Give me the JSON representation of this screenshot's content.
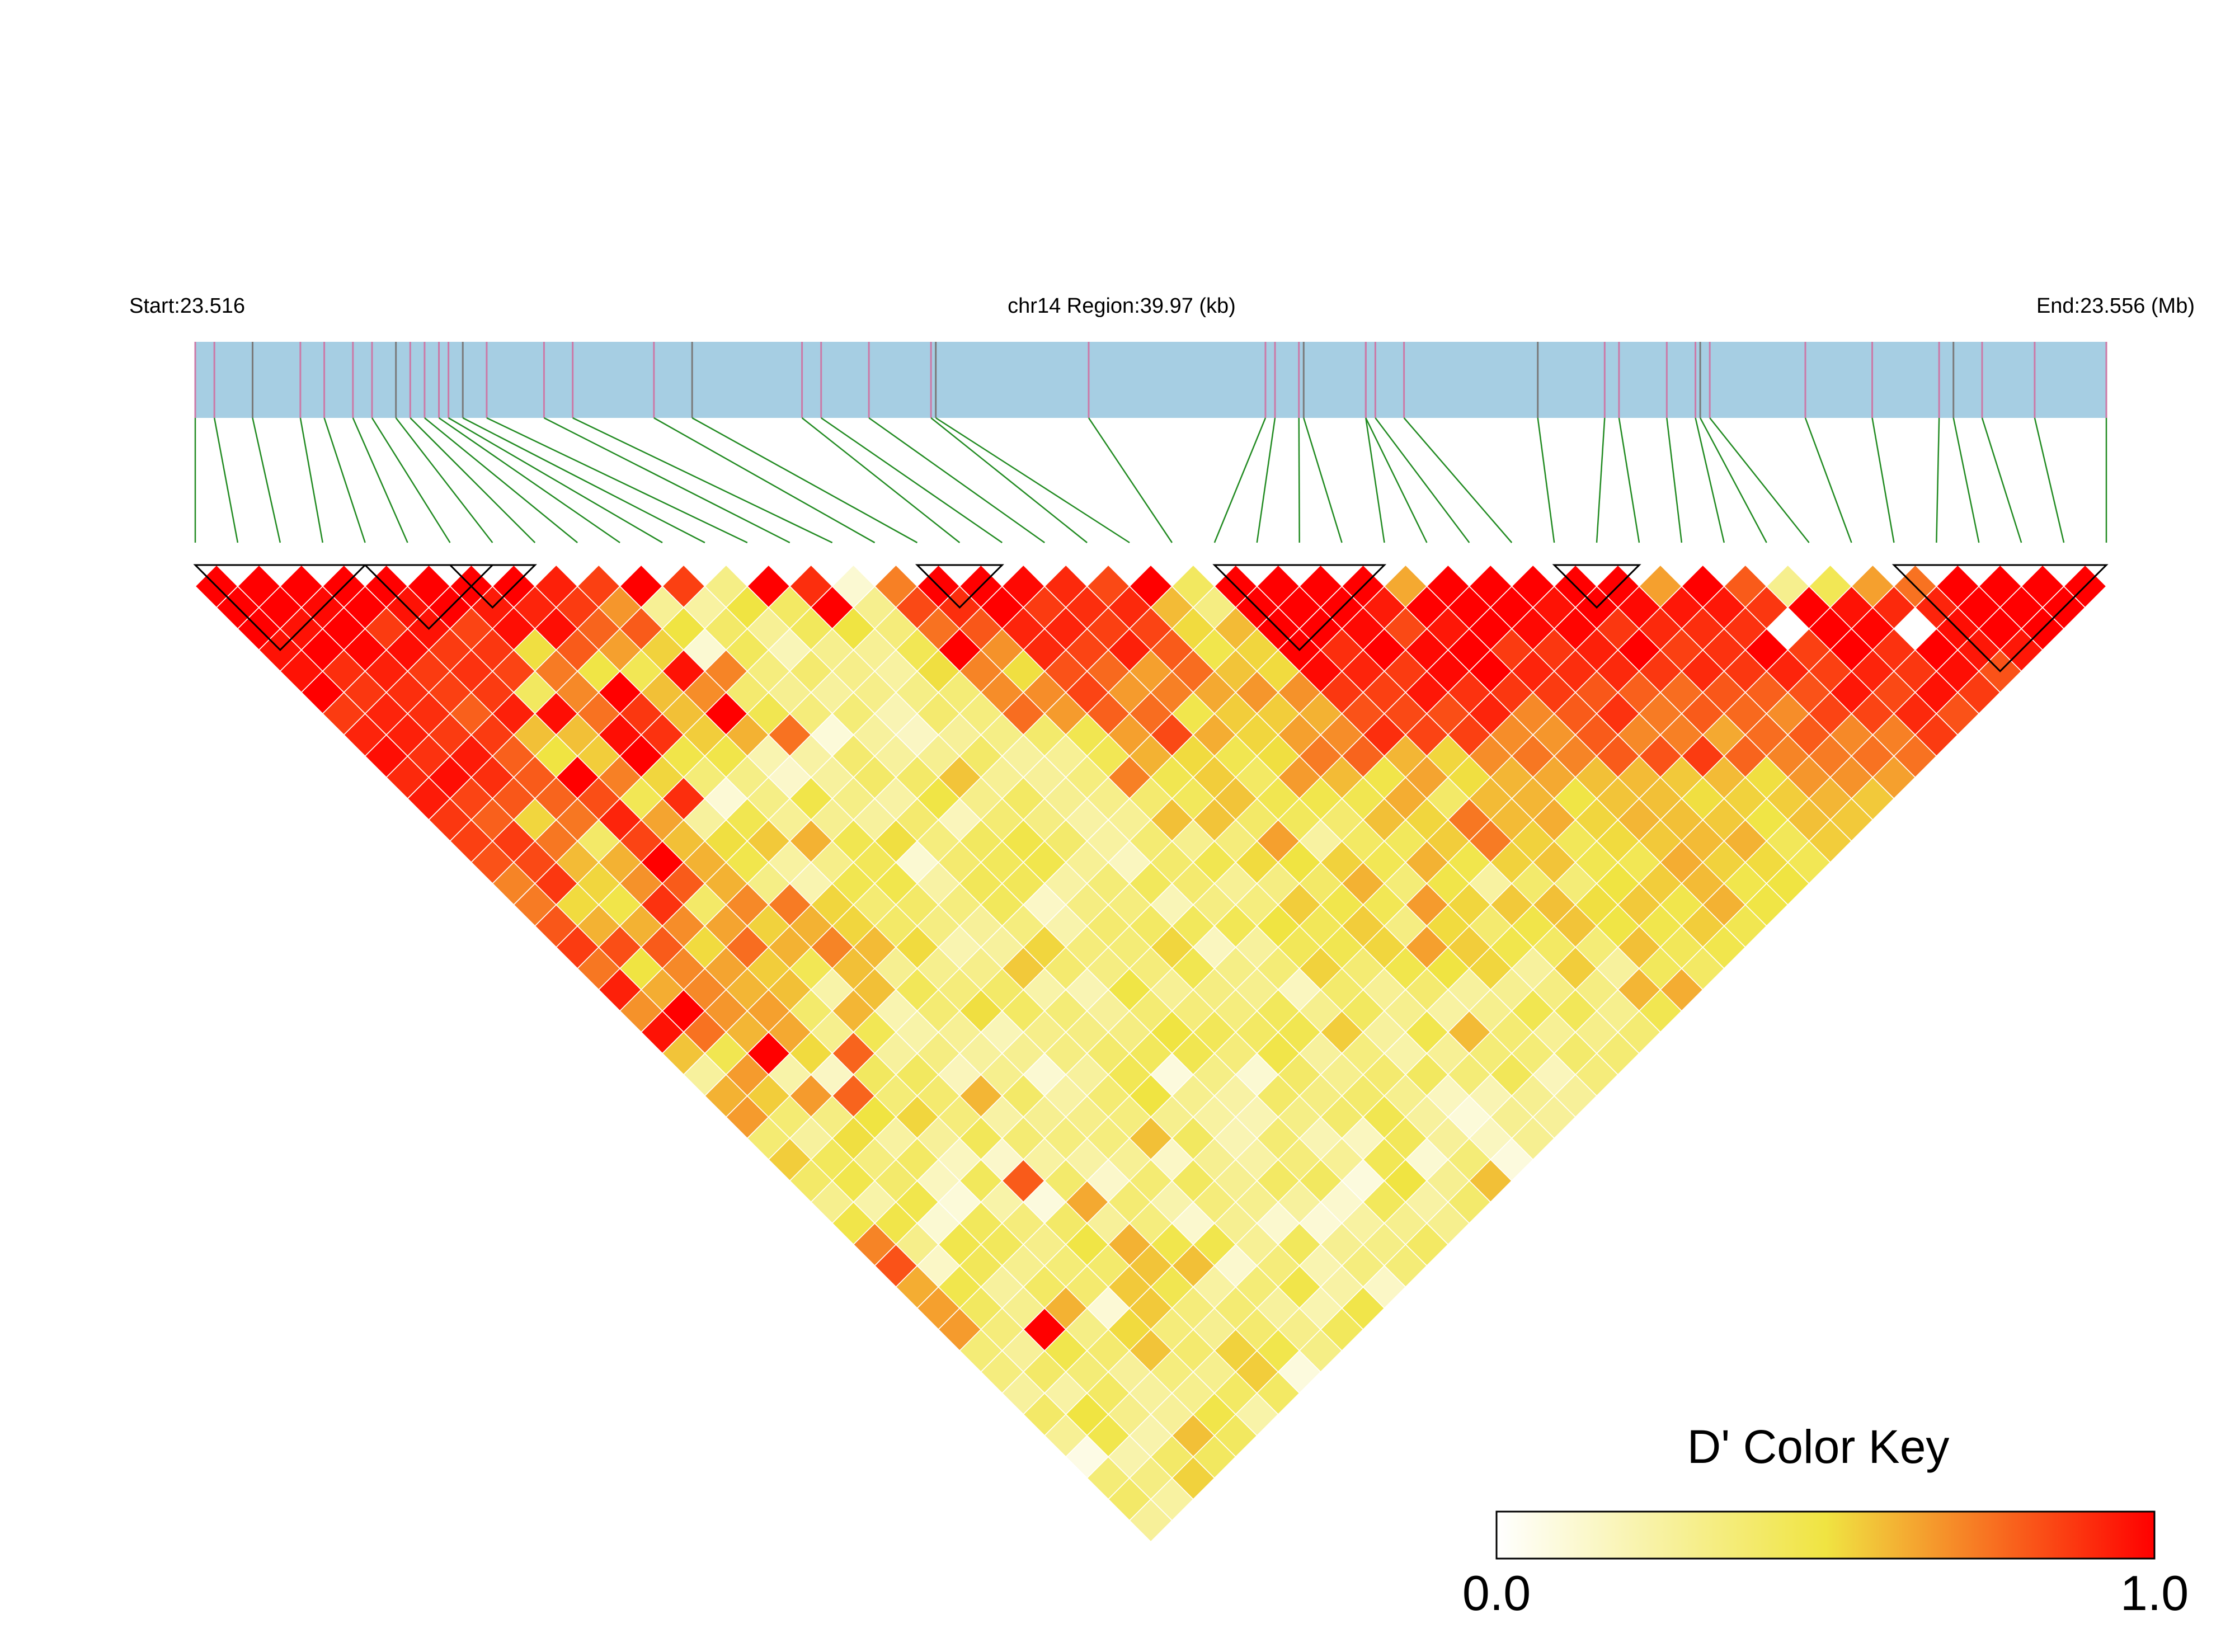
{
  "header": {
    "start_label": "Start:23.516",
    "region_label": "chr14 Region:39.97 (kb)",
    "end_label": "End:23.556 (Mb)"
  },
  "colors": {
    "track_fill": "#a6cee3",
    "snp_tick": "#cc79a7",
    "snp_tick_dark": "#7a7a7a",
    "connector": "#228b22",
    "scale_low": "#ffffff",
    "scale_mid": "#f0e442",
    "scale_high": "#ff0000"
  },
  "key": {
    "title": "D' Color Key",
    "min_label": "0.0",
    "max_label": "1.0"
  },
  "chart_data": {
    "type": "heatmap",
    "title": "",
    "subtitle": "",
    "measure": "D'",
    "chromosome": "chr14",
    "region_start_mb": 23.516,
    "region_end_mb": 23.556,
    "region_length_kb": 39.97,
    "n_snps": 46,
    "color_range": [
      0.0,
      1.0
    ],
    "haplotype_blocks": [
      [
        0,
        4
      ],
      [
        4,
        7
      ],
      [
        6,
        8
      ],
      [
        17,
        19
      ],
      [
        24,
        28
      ],
      [
        32,
        34
      ],
      [
        40,
        45
      ]
    ],
    "snp_positions_mb": [
      23.516,
      23.5164,
      23.5172,
      23.5182,
      23.5187,
      23.5193,
      23.5197,
      23.5202,
      23.5205,
      23.5208,
      23.5211,
      23.5213,
      23.5216,
      23.5221,
      23.5233,
      23.5239,
      23.5256,
      23.5264,
      23.5287,
      23.5291,
      23.5301,
      23.5314,
      23.5315,
      23.5347,
      23.5384,
      23.5386,
      23.5391,
      23.5392,
      23.5405,
      23.5405,
      23.5407,
      23.5413,
      23.5441,
      23.5455,
      23.5458,
      23.5468,
      23.5474,
      23.5475,
      23.5477,
      23.5497,
      23.5511,
      23.5525,
      23.5528,
      23.5534,
      23.5545,
      23.556
    ],
    "dprime": [
      [
        1.0,
        1.0,
        1.0,
        0.96,
        0.96,
        1.0,
        0.87,
        0.92,
        0.97,
        0.91,
        0.94,
        0.88,
        0.86,
        0.82,
        0.71,
        0.73,
        0.81,
        0.87,
        0.74,
        0.93,
        0.68,
        0.96,
        0.57,
        0.26,
        0.61,
        0.66,
        0.37,
        0.55,
        0.4,
        0.3,
        0.48,
        0.71,
        0.82,
        0.62,
        0.65,
        0.66,
        0.36,
        0.34,
        0.26,
        0.4,
        0.28,
        0.07,
        0.36,
        0.4,
        0.27
      ],
      [
        1.0,
        1.0,
        0.96,
        1.0,
        0.9,
        0.88,
        0.92,
        0.93,
        0.89,
        0.97,
        0.85,
        0.79,
        0.87,
        0.84,
        0.88,
        0.52,
        0.61,
        0.83,
        0.5,
        0.62,
        1.0,
        0.75,
        0.46,
        0.66,
        0.55,
        0.37,
        0.26,
        0.43,
        0.47,
        0.23,
        0.48,
        0.31,
        0.15,
        0.47,
        0.42,
        0.35,
        0.27,
        0.4,
        0.24,
        0.5,
        0.47,
        0.22,
        0.33,
        0.25
      ],
      [
        1.0,
        0.98,
        1.0,
        0.99,
        0.93,
        0.9,
        0.9,
        0.87,
        0.94,
        0.9,
        0.81,
        0.53,
        0.74,
        0.59,
        0.53,
        0.48,
        0.61,
        0.8,
        0.7,
        0.7,
        0.67,
        0.6,
        1.0,
        0.23,
        0.66,
        0.33,
        0.51,
        0.34,
        0.39,
        0.47,
        0.12,
        0.47,
        0.44,
        0.26,
        0.3,
        1.0,
        0.47,
        0.36,
        0.41,
        0.31,
        0.22,
        0.4,
        0.54
      ],
      [
        1.0,
        1.0,
        0.87,
        0.97,
        0.87,
        0.86,
        0.79,
        0.87,
        0.79,
        0.8,
        0.78,
        0.74,
        0.4,
        0.61,
        0.68,
        0.89,
        0.69,
        0.52,
        0.64,
        0.6,
        0.65,
        0.63,
        0.52,
        0.16,
        0.78,
        0.5,
        0.25,
        0.41,
        0.17,
        0.1,
        0.43,
        0.43,
        0.3,
        0.41,
        0.61,
        0.32,
        0.38,
        0.27,
        0.26,
        0.27,
        0.58,
        0.42
      ],
      [
        1.0,
        0.96,
        0.96,
        0.87,
        0.89,
        0.87,
        0.93,
        0.58,
        0.5,
        1.0,
        0.83,
        0.92,
        0.85,
        1.0,
        0.8,
        0.4,
        0.64,
        0.76,
        0.55,
        0.58,
        0.39,
        0.3,
        0.78,
        0.42,
        0.36,
        0.53,
        0.27,
        0.17,
        0.43,
        0.23,
        0.35,
        0.31,
        0.36,
        0.38,
        0.11,
        0.52,
        0.57,
        0.34,
        0.3,
        0.48,
        0.42
      ],
      [
        1.0,
        1.0,
        0.85,
        0.88,
        0.85,
        0.42,
        0.97,
        0.58,
        0.55,
        0.72,
        0.45,
        0.64,
        0.58,
        0.61,
        0.61,
        0.7,
        0.54,
        0.61,
        0.45,
        0.23,
        0.6,
        0.45,
        0.26,
        0.42,
        0.38,
        0.35,
        0.44,
        0.14,
        0.8,
        0.09,
        0.4,
        0.49,
        0.39,
        0.56,
        0.56,
        0.35,
        0.38,
        0.3,
        0.41,
        0.23
      ],
      [
        1.0,
        0.94,
        0.97,
        0.51,
        0.73,
        0.7,
        0.75,
        0.97,
        1.0,
        0.53,
        0.9,
        0.26,
        0.51,
        0.47,
        0.32,
        0.73,
        0.61,
        0.71,
        0.58,
        0.58,
        0.21,
        0.23,
        0.33,
        0.18,
        0.6,
        0.24,
        0.37,
        0.25,
        0.39,
        0.63,
        0.27,
        0.61,
        0.57,
        0.46,
        0.35,
        0.29,
        0.54,
        0.55,
        0.41
      ],
      [
        1.0,
        0.92,
        0.97,
        0.8,
        0.49,
        1.0,
        0.88,
        0.89,
        0.48,
        0.36,
        0.11,
        0.46,
        0.56,
        0.25,
        0.21,
        0.53,
        0.53,
        0.59,
        0.29,
        0.44,
        0.37,
        0.28,
        0.26,
        0.3,
        0.4,
        0.29,
        0.34,
        0.24,
        0.14,
        0.37,
        0.34,
        0.47,
        0.58,
        0.25,
        0.37,
        0.38,
        0.47,
        0.09
      ],
      [
        0.93,
        0.87,
        0.78,
        0.65,
        0.45,
        0.58,
        0.58,
        0.55,
        0.48,
        0.32,
        0.32,
        0.28,
        0.61,
        0.31,
        0.46,
        0.37,
        0.4,
        0.52,
        0.3,
        0.35,
        0.51,
        0.19,
        0.29,
        0.12,
        0.24,
        0.31,
        0.34,
        0.28,
        0.37,
        0.22,
        0.13,
        0.47,
        0.13,
        0.36,
        0.26,
        0.31,
        0.32
      ],
      [
        0.86,
        0.67,
        0.8,
        0.54,
        0.96,
        0.69,
        1.0,
        0.61,
        0.21,
        0.14,
        0.48,
        0.29,
        0.46,
        0.44,
        0.47,
        0.4,
        0.33,
        0.21,
        0.31,
        0.4,
        0.41,
        0.31,
        0.33,
        0.26,
        0.37,
        0.34,
        0.58,
        0.15,
        0.42,
        0.35,
        0.29,
        0.28,
        0.35,
        0.48,
        0.21,
        0.43
      ],
      [
        1.0,
        0.28,
        0.5,
        0.12,
        0.71,
        0.38,
        0.46,
        0.75,
        0.24,
        0.26,
        0.32,
        0.26,
        0.51,
        0.12,
        0.24,
        0.34,
        0.27,
        0.26,
        0.56,
        0.23,
        0.36,
        0.33,
        0.39,
        0.45,
        0.5,
        0.3,
        0.42,
        0.29,
        0.29,
        0.3,
        0.13,
        0.43,
        0.21,
        0.24,
        0.48
      ],
      [
        0.86,
        0.25,
        0.4,
        0.43,
        0.34,
        0.29,
        0.35,
        0.1,
        0.38,
        0.4,
        0.24,
        0.38,
        0.34,
        0.38,
        0.44,
        0.43,
        0.34,
        0.53,
        0.38,
        0.2,
        0.27,
        0.33,
        0.43,
        0.09,
        0.3,
        0.25,
        0.2,
        0.24,
        0.41,
        0.26,
        0.11,
        0.29,
        0.34,
        0.15
      ],
      [
        0.32,
        0.5,
        0.28,
        0.19,
        0.38,
        0.26,
        0.36,
        0.26,
        0.26,
        0.4,
        0.49,
        0.18,
        0.42,
        0.43,
        0.44,
        0.15,
        0.22,
        0.35,
        0.33,
        0.49,
        0.37,
        0.5,
        0.46,
        0.32,
        0.24,
        0.2,
        0.37,
        0.35,
        0.42,
        0.13,
        0.25,
        0.32,
        0.36
      ],
      [
        1.0,
        0.41,
        0.43,
        0.3,
        0.31,
        0.31,
        0.2,
        0.16,
        0.29,
        0.57,
        0.31,
        0.37,
        0.48,
        0.47,
        0.24,
        0.33,
        0.38,
        0.36,
        0.35,
        0.28,
        0.35,
        0.44,
        0.35,
        0.12,
        0.4,
        0.32,
        0.2,
        0.28,
        0.09,
        0.43,
        0.3,
        0.41
      ],
      [
        0.9,
        1.0,
        0.5,
        0.28,
        0.25,
        0.32,
        0.38,
        0.27,
        0.4,
        0.28,
        0.41,
        0.33,
        0.39,
        0.28,
        0.36,
        0.34,
        0.41,
        0.53,
        0.46,
        0.33,
        0.34,
        0.41,
        0.48,
        0.4,
        0.33,
        0.39,
        0.17,
        0.45,
        0.5,
        0.24,
        0.3
      ],
      [
        0.12,
        0.3,
        0.35,
        0.45,
        0.51,
        0.36,
        0.34,
        0.32,
        0.26,
        0.27,
        0.29,
        0.24,
        0.25,
        0.17,
        0.43,
        0.19,
        0.43,
        0.17,
        0.32,
        0.3,
        0.43,
        0.46,
        0.26,
        0.3,
        0.39,
        0.46,
        0.44,
        0.12,
        0.29,
        0.39
      ],
      [
        0.72,
        0.84,
        0.75,
        1.0,
        0.71,
        0.69,
        0.76,
        0.39,
        0.28,
        0.34,
        0.31,
        0.28,
        0.37,
        0.39,
        0.38,
        0.33,
        0.45,
        0.26,
        0.36,
        0.17,
        0.3,
        0.55,
        0.34,
        0.38,
        0.3,
        0.26,
        0.27,
        0.36,
        0.58
      ],
      [
        1.0,
        0.9,
        0.81,
        0.68,
        0.51,
        0.69,
        0.66,
        0.46,
        0.45,
        0.72,
        0.38,
        0.58,
        0.3,
        0.46,
        0.28,
        0.34,
        0.5,
        0.44,
        0.54,
        0.39,
        0.42,
        0.26,
        0.23,
        0.42,
        0.17,
        0.1,
        0.17,
        0.09
      ],
      [
        1.0,
        1.0,
        0.92,
        0.91,
        0.82,
        0.85,
        0.79,
        0.65,
        0.61,
        0.46,
        0.43,
        0.57,
        0.35,
        0.52,
        0.33,
        0.55,
        0.44,
        0.46,
        0.37,
        0.28,
        0.3,
        0.47,
        0.28,
        0.36,
        0.2,
        0.29,
        0.29
      ],
      [
        0.98,
        0.87,
        0.92,
        0.85,
        0.77,
        0.66,
        0.76,
        0.84,
        0.52,
        0.55,
        0.57,
        0.4,
        0.65,
        0.5,
        0.4,
        0.47,
        0.55,
        0.53,
        0.47,
        0.38,
        0.25,
        0.59,
        0.36,
        0.44,
        0.29,
        0.27
      ],
      [
        0.91,
        0.9,
        0.86,
        0.93,
        0.65,
        0.72,
        0.47,
        0.62,
        0.46,
        0.41,
        0.46,
        0.43,
        0.25,
        0.54,
        0.61,
        0.45,
        0.33,
        0.65,
        0.5,
        0.26,
        0.3,
        0.37,
        0.36,
        0.18,
        0.27
      ],
      [
        0.84,
        0.91,
        0.85,
        0.8,
        0.76,
        0.63,
        0.55,
        0.53,
        0.51,
        0.66,
        0.47,
        0.38,
        0.41,
        0.45,
        0.36,
        0.66,
        0.52,
        0.55,
        0.53,
        0.29,
        0.46,
        0.28,
        0.39,
        0.35
      ],
      [
        1.0,
        0.59,
        0.52,
        0.47,
        0.57,
        0.67,
        0.55,
        0.65,
        0.73,
        0.59,
        0.46,
        0.58,
        0.43,
        0.61,
        0.48,
        0.53,
        0.38,
        0.47,
        0.26,
        0.33,
        0.44,
        0.31,
        0.37
      ],
      [
        0.42,
        0.33,
        0.59,
        0.53,
        0.52,
        0.68,
        0.61,
        0.69,
        0.78,
        0.48,
        0.62,
        0.53,
        0.55,
        0.47,
        0.25,
        0.56,
        0.48,
        0.41,
        0.55,
        0.33,
        0.3,
        0.37
      ],
      [
        1.0,
        1.0,
        1.0,
        1.0,
        0.98,
        0.88,
        0.82,
        0.9,
        0.6,
        0.64,
        0.4,
        0.74,
        0.73,
        0.54,
        0.39,
        0.58,
        0.57,
        0.36,
        0.26,
        0.6,
        0.46
      ],
      [
        1.0,
        1.0,
        1.0,
        0.9,
        0.92,
        0.86,
        0.84,
        0.85,
        0.53,
        0.51,
        0.59,
        0.59,
        0.54,
        0.57,
        0.36,
        0.51,
        0.49,
        0.58,
        0.43,
        0.62
      ],
      [
        1.0,
        1.0,
        0.98,
        1.0,
        0.87,
        0.95,
        0.83,
        0.86,
        0.69,
        0.6,
        0.6,
        0.62,
        0.44,
        0.46,
        0.5,
        0.56,
        0.47,
        0.44,
        0.41
      ],
      [
        1.0,
        0.94,
        0.84,
        0.98,
        0.98,
        0.89,
        0.92,
        0.69,
        0.74,
        0.63,
        0.49,
        0.53,
        0.52,
        0.45,
        0.55,
        0.47,
        0.55,
        0.47
      ],
      [
        0.63,
        1.0,
        0.95,
        1.0,
        1.0,
        0.88,
        0.7,
        0.67,
        0.71,
        0.58,
        0.57,
        0.6,
        0.56,
        0.62,
        0.59,
        0.61,
        0.46
      ],
      [
        1.0,
        1.0,
        1.0,
        0.87,
        0.92,
        0.87,
        0.8,
        0.8,
        0.8,
        0.59,
        0.58,
        0.58,
        0.59,
        0.54,
        0.47,
        0.49
      ],
      [
        1.0,
        1.0,
        0.98,
        0.88,
        0.9,
        0.81,
        0.89,
        0.7,
        0.82,
        0.56,
        0.51,
        0.56,
        0.61,
        0.52,
        0.5
      ],
      [
        1.0,
        0.96,
        0.99,
        0.93,
        0.91,
        0.79,
        0.73,
        0.72,
        0.87,
        0.59,
        0.54,
        0.49,
        0.44,
        0.45
      ],
      [
        1.0,
        1.0,
        0.88,
        1.0,
        0.88,
        0.76,
        0.8,
        0.63,
        0.78,
        0.51,
        0.55,
        0.58,
        0.55
      ],
      [
        1.0,
        0.98,
        0.91,
        0.86,
        0.91,
        0.81,
        0.77,
        0.76,
        0.71,
        0.67,
        0.6,
        0.56
      ],
      [
        0.65,
        0.95,
        0.9,
        0.89,
        0.88,
        0.79,
        0.69,
        0.8,
        0.73,
        0.68,
        0.56
      ],
      [
        1.0,
        0.95,
        0.89,
        1.0,
        0.92,
        0.82,
        0.85,
        0.7,
        0.75,
        0.65
      ],
      [
        0.8,
        0.88,
        0.0,
        0.86,
        0.86,
        0.95,
        0.85,
        0.72,
        0.75
      ],
      [
        0.3,
        1.0,
        1.0,
        1.0,
        0.92,
        0.84,
        0.91,
        0.87
      ],
      [
        0.45,
        0.96,
        0.99,
        0.89,
        0.88,
        0.96,
        0.82
      ],
      [
        0.65,
        0.91,
        0.0,
        1.0,
        0.97,
        0.87
      ],
      [
        0.75,
        0.92,
        0.97,
        0.95,
        0.82
      ],
      [
        1.0,
        1.0,
        1.0,
        0.95
      ],
      [
        1.0,
        1.0,
        1.0
      ],
      [
        1.0,
        1.0
      ],
      [
        1.0
      ]
    ]
  }
}
